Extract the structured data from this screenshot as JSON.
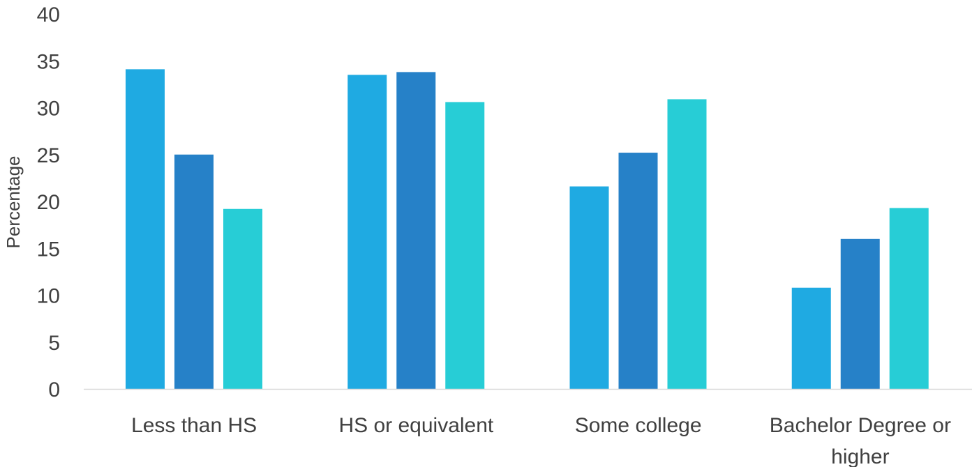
{
  "chart_data": {
    "type": "bar",
    "title": "",
    "xlabel": "",
    "ylabel": "Percentage",
    "ylim": [
      0,
      40
    ],
    "yticks": [
      0,
      5,
      10,
      15,
      20,
      25,
      30,
      35,
      40
    ],
    "grid": false,
    "legend": "none",
    "categories": [
      [
        "Less than HS"
      ],
      [
        "HS or equivalent"
      ],
      [
        "Some college"
      ],
      [
        "Bachelor Degree or",
        "higher"
      ]
    ],
    "series": [
      {
        "color": "#1FAAE2",
        "values": [
          34.1,
          33.5,
          21.6,
          10.8
        ]
      },
      {
        "color": "#2681C8",
        "values": [
          25.0,
          33.8,
          25.2,
          16.0
        ]
      },
      {
        "color": "#27CDD6",
        "values": [
          19.2,
          30.6,
          30.9,
          19.3
        ]
      }
    ],
    "axis_line_color": "#D9D9D9"
  }
}
